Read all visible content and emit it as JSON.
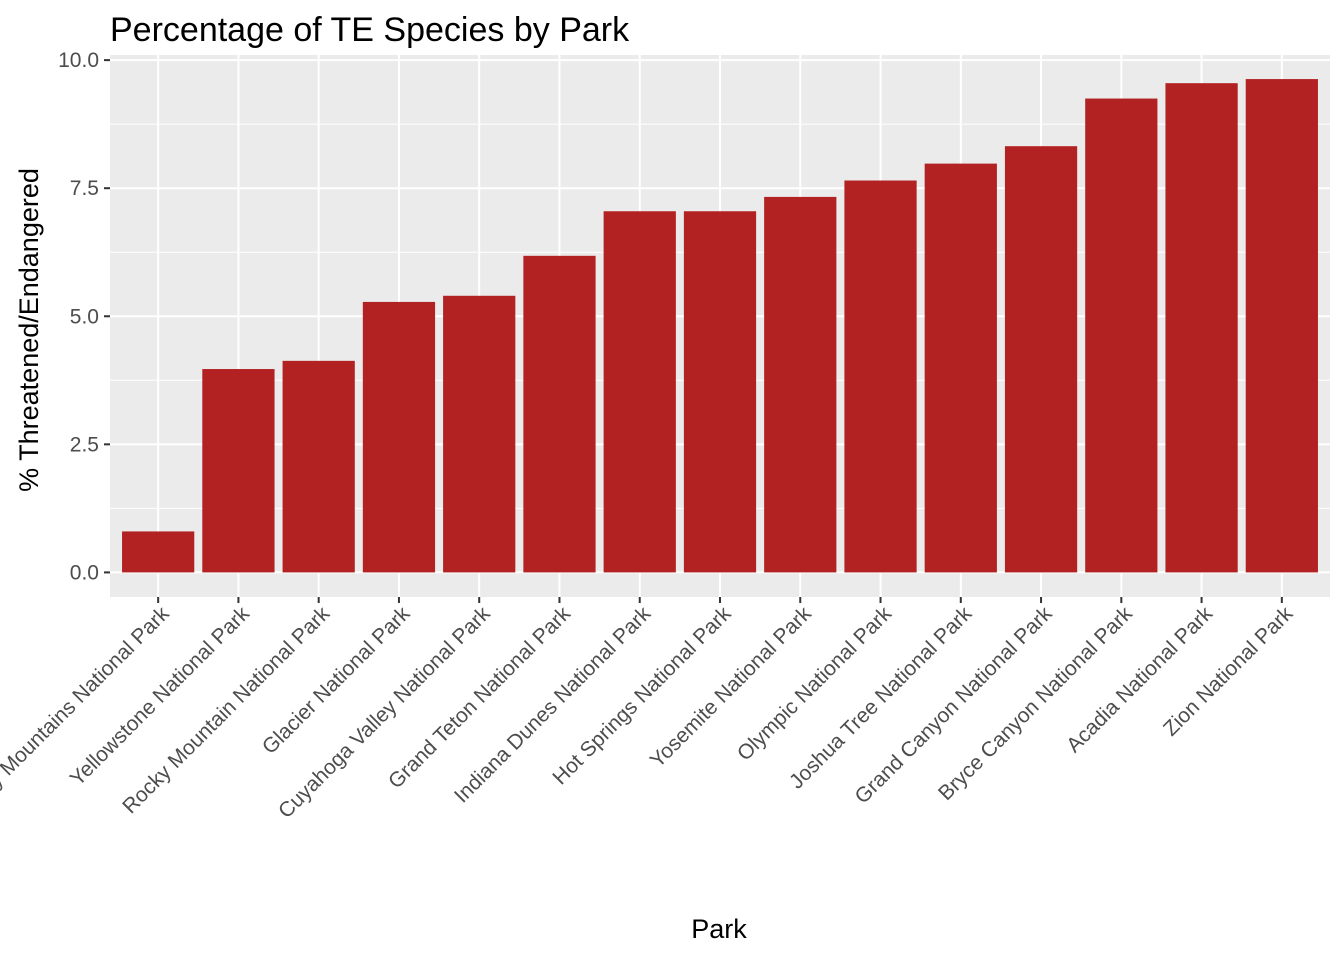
{
  "chart_data": {
    "type": "bar",
    "title": "Percentage of TE Species by Park",
    "xlabel": "Park",
    "ylabel": "% Threatened/Endangered",
    "categories": [
      "Great Smoky Mountains National Park",
      "Yellowstone National Park",
      "Rocky Mountain National Park",
      "Glacier National Park",
      "Cuyahoga Valley National Park",
      "Grand Teton National Park",
      "Indiana Dunes National Park",
      "Hot Springs National Park",
      "Yosemite National Park",
      "Olympic National Park",
      "Joshua Tree National Park",
      "Grand Canyon National Park",
      "Bryce Canyon National Park",
      "Acadia National Park",
      "Zion National Park"
    ],
    "values": [
      0.8,
      3.97,
      4.13,
      5.28,
      5.4,
      6.18,
      7.05,
      7.05,
      7.33,
      7.65,
      7.98,
      8.32,
      9.25,
      9.55,
      9.63
    ],
    "ylim": [
      -0.48,
      10.1
    ],
    "yticks": [
      "0.0",
      "2.5",
      "5.0",
      "7.5",
      "10.0"
    ],
    "bar_color": "#B22222",
    "panel_color": "#EBEBEB",
    "grid": true,
    "legend": "none"
  }
}
